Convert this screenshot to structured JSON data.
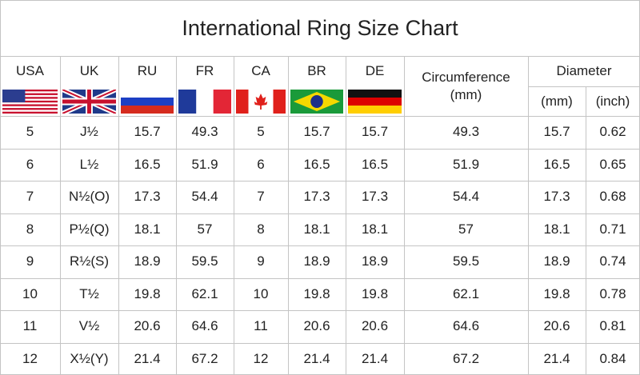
{
  "header": {
    "title": "International Ring Size Chart"
  },
  "table": {
    "columns": [
      "USA",
      "UK",
      "RU",
      "FR",
      "CA",
      "BR",
      "DE"
    ],
    "circumference": [
      "Circumference",
      "(mm)"
    ],
    "diameter": {
      "label": "Diameter",
      "units": [
        "(mm)",
        "(inch)"
      ]
    },
    "rows": [
      [
        "5",
        "J½",
        "15.7",
        "49.3",
        "5",
        "15.7",
        "15.7",
        "49.3",
        "15.7",
        "0.62"
      ],
      [
        "6",
        "L½",
        "16.5",
        "51.9",
        "6",
        "16.5",
        "16.5",
        "51.9",
        "16.5",
        "0.65"
      ],
      [
        "7",
        "N½(O)",
        "17.3",
        "54.4",
        "7",
        "17.3",
        "17.3",
        "54.4",
        "17.3",
        "0.68"
      ],
      [
        "8",
        "P½(Q)",
        "18.1",
        "57",
        "8",
        "18.1",
        "18.1",
        "57",
        "18.1",
        "0.71"
      ],
      [
        "9",
        "R½(S)",
        "18.9",
        "59.5",
        "9",
        "18.9",
        "18.9",
        "59.5",
        "18.9",
        "0.74"
      ],
      [
        "10",
        "T½",
        "19.8",
        "62.1",
        "10",
        "19.8",
        "19.8",
        "62.1",
        "19.8",
        "0.78"
      ],
      [
        "11",
        "V½",
        "20.6",
        "64.6",
        "11",
        "20.6",
        "20.6",
        "64.6",
        "20.6",
        "0.81"
      ],
      [
        "12",
        "X½(Y)",
        "21.4",
        "67.2",
        "12",
        "21.4",
        "21.4",
        "67.2",
        "21.4",
        "0.84"
      ]
    ]
  }
}
